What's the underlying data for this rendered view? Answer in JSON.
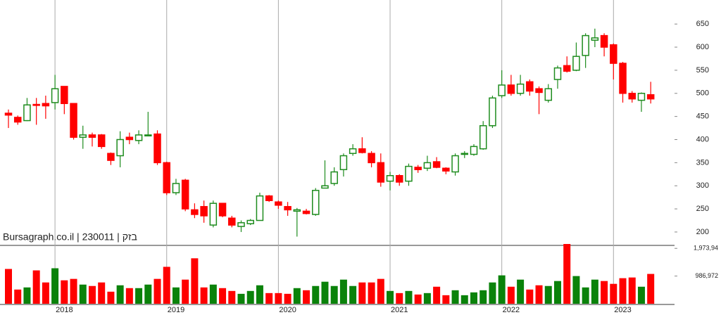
{
  "chart_data": {
    "type": "candlestick",
    "watermark": "Bursagraph.co.il | 230011 | בזק",
    "categories": [
      null,
      null,
      null,
      null,
      null,
      "2018",
      null,
      null,
      null,
      null,
      null,
      null,
      null,
      null,
      null,
      null,
      null,
      "2019",
      null,
      null,
      null,
      null,
      null,
      null,
      null,
      null,
      null,
      null,
      null,
      "2020",
      null,
      null,
      null,
      null,
      null,
      null,
      null,
      null,
      null,
      null,
      null,
      "2021",
      null,
      null,
      null,
      null,
      null,
      null,
      null,
      null,
      null,
      null,
      null,
      "2022",
      null,
      null,
      null,
      null,
      null,
      null,
      null,
      null,
      null,
      null,
      null,
      "2023",
      null,
      null,
      null,
      null
    ],
    "up_color": "#1e8c1e",
    "down_color": "#ff0000",
    "open": [
      457,
      448,
      441,
      476,
      478,
      480,
      515,
      478,
      405,
      410,
      410,
      370,
      365,
      405,
      398,
      408,
      412,
      350,
      285,
      312,
      248,
      255,
      215,
      262,
      230,
      212,
      218,
      225,
      278,
      265,
      255,
      245,
      245,
      238,
      295,
      305,
      335,
      370,
      380,
      370,
      350,
      310,
      322,
      310,
      340,
      338,
      352,
      338,
      330,
      368,
      368,
      380,
      430,
      495,
      518,
      500,
      525,
      510,
      485,
      530,
      560,
      550,
      582,
      615,
      625,
      605,
      565,
      500,
      485,
      497
    ],
    "high": [
      465,
      452,
      490,
      490,
      495,
      540,
      515,
      478,
      430,
      415,
      412,
      372,
      418,
      415,
      420,
      460,
      420,
      352,
      315,
      315,
      262,
      268,
      268,
      262,
      235,
      225,
      228,
      285,
      280,
      268,
      265,
      252,
      250,
      295,
      355,
      340,
      370,
      390,
      405,
      375,
      370,
      330,
      325,
      348,
      345,
      365,
      362,
      340,
      370,
      375,
      390,
      440,
      495,
      550,
      540,
      540,
      530,
      515,
      520,
      560,
      580,
      610,
      630,
      640,
      630,
      608,
      568,
      505,
      502,
      525
    ],
    "low": [
      425,
      432,
      440,
      432,
      445,
      465,
      455,
      400,
      380,
      385,
      380,
      345,
      340,
      390,
      390,
      408,
      345,
      280,
      280,
      245,
      230,
      220,
      210,
      232,
      210,
      200,
      215,
      225,
      265,
      250,
      235,
      190,
      238,
      235,
      295,
      300,
      320,
      365,
      370,
      340,
      298,
      290,
      300,
      300,
      328,
      332,
      338,
      325,
      322,
      360,
      365,
      378,
      425,
      490,
      495,
      495,
      495,
      455,
      480,
      510,
      545,
      548,
      555,
      600,
      580,
      530,
      480,
      480,
      460,
      478
    ],
    "close": [
      453,
      438,
      475,
      474,
      473,
      510,
      478,
      405,
      410,
      405,
      385,
      355,
      400,
      400,
      410,
      410,
      350,
      285,
      305,
      250,
      238,
      235,
      262,
      235,
      215,
      220,
      225,
      278,
      268,
      258,
      248,
      248,
      240,
      290,
      300,
      330,
      365,
      380,
      372,
      350,
      308,
      322,
      308,
      342,
      335,
      350,
      340,
      332,
      365,
      370,
      385,
      430,
      490,
      518,
      500,
      520,
      505,
      502,
      510,
      555,
      548,
      580,
      625,
      620,
      600,
      565,
      500,
      488,
      500,
      488
    ],
    "volume": [
      1240000,
      506000,
      582000,
      1189000,
      759000,
      1265000,
      835000,
      886000,
      683000,
      633000,
      759000,
      430000,
      658000,
      557000,
      557000,
      683000,
      886000,
      1316000,
      582000,
      860000,
      1620000,
      582000,
      683000,
      557000,
      456000,
      354000,
      456000,
      658000,
      380000,
      380000,
      354000,
      557000,
      481000,
      633000,
      785000,
      633000,
      860000,
      633000,
      759000,
      759000,
      886000,
      456000,
      380000,
      456000,
      329000,
      380000,
      607000,
      304000,
      481000,
      304000,
      405000,
      481000,
      759000,
      1012000,
      607000,
      860000,
      506000,
      658000,
      633000,
      810000,
      2130000,
      987000,
      582000,
      860000,
      810000,
      709000,
      911000,
      936000,
      607000,
      1063000
    ],
    "volume_up_color": "#0a820a",
    "volume_down_color": "#ff0000",
    "ylim": [
      171,
      702
    ],
    "yticks": [
      200,
      250,
      300,
      350,
      400,
      450,
      500,
      550,
      600,
      650
    ],
    "volume_ylim": [
      0,
      2130000
    ],
    "volume_yticks": [
      {
        "value": 986972,
        "label": "986,972"
      },
      {
        "value": 1973944,
        "label": "1,973,94"
      }
    ]
  }
}
